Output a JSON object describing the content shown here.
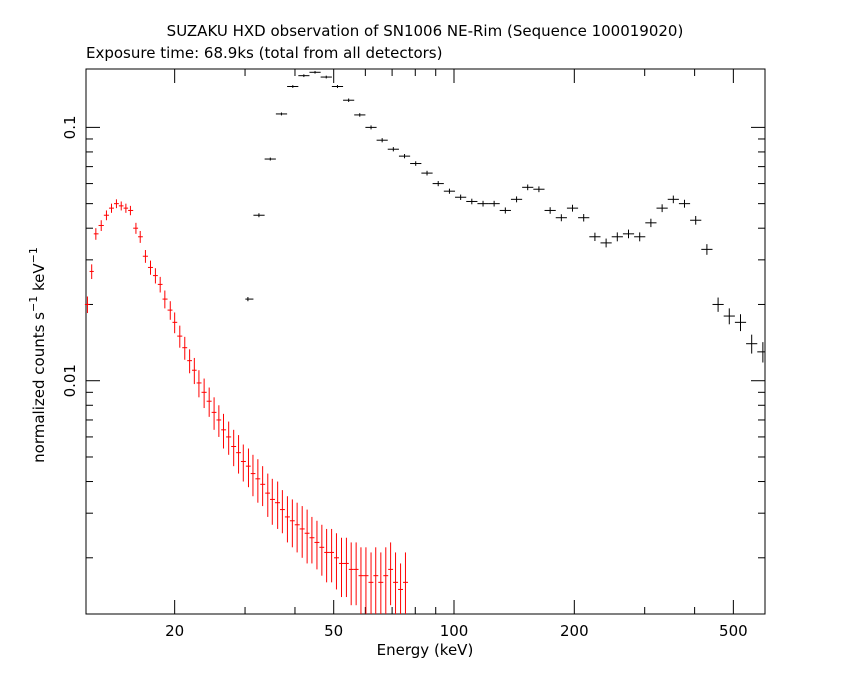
{
  "chart_data": {
    "type": "scatter",
    "title": "SUZAKU HXD observation of SN1006 NE-Rim (Sequence 100019020)",
    "subtitle": "Exposure time: 68.9ks (total from all detectors)",
    "xlabel": "Energy (keV)",
    "ylabel": "normalized counts s^-1 keV^-1",
    "ylabel_parts": {
      "prefix": "normalized counts s",
      "sup1": "−1",
      "mid": " keV",
      "sup2": "−1"
    },
    "x_scale": "log",
    "y_scale": "log",
    "xlim": [
      12,
      600
    ],
    "ylim": [
      0.0012,
      0.17
    ],
    "x_ticks": [
      {
        "value": 20,
        "label": "20"
      },
      {
        "value": 50,
        "label": "50"
      },
      {
        "value": 100,
        "label": "100"
      },
      {
        "value": 200,
        "label": "200"
      },
      {
        "value": 500,
        "label": "500"
      }
    ],
    "y_ticks": [
      {
        "value": 0.01,
        "label": "0.01"
      },
      {
        "value": 0.1,
        "label": "0.1"
      }
    ],
    "grid": false,
    "series": [
      {
        "color": "#ff0000",
        "points": [
          [
            12.1,
            0.02,
            0.0015
          ],
          [
            12.4,
            0.027,
            0.0018
          ],
          [
            12.7,
            0.038,
            0.002
          ],
          [
            13.1,
            0.041,
            0.002
          ],
          [
            13.5,
            0.045,
            0.002
          ],
          [
            13.9,
            0.048,
            0.002
          ],
          [
            14.3,
            0.05,
            0.002
          ],
          [
            14.7,
            0.049,
            0.002
          ],
          [
            15.1,
            0.048,
            0.002
          ],
          [
            15.5,
            0.047,
            0.002
          ],
          [
            16.0,
            0.04,
            0.002
          ],
          [
            16.4,
            0.037,
            0.002
          ],
          [
            16.9,
            0.031,
            0.0018
          ],
          [
            17.4,
            0.028,
            0.0018
          ],
          [
            17.9,
            0.026,
            0.0018
          ],
          [
            18.4,
            0.024,
            0.0017
          ],
          [
            18.9,
            0.021,
            0.0017
          ],
          [
            19.5,
            0.019,
            0.0016
          ],
          [
            20.0,
            0.017,
            0.0016
          ],
          [
            20.6,
            0.015,
            0.0015
          ],
          [
            21.2,
            0.0135,
            0.0014
          ],
          [
            21.8,
            0.012,
            0.0013
          ],
          [
            22.4,
            0.011,
            0.0013
          ],
          [
            23.0,
            0.0098,
            0.0012
          ],
          [
            23.7,
            0.009,
            0.0012
          ],
          [
            24.4,
            0.0083,
            0.0011
          ],
          [
            25.1,
            0.0075,
            0.0011
          ],
          [
            25.8,
            0.007,
            0.001
          ],
          [
            26.5,
            0.0064,
            0.001
          ],
          [
            27.3,
            0.006,
            0.0009
          ],
          [
            28.1,
            0.0055,
            0.0009
          ],
          [
            28.9,
            0.0052,
            0.0009
          ],
          [
            29.7,
            0.0048,
            0.0008
          ],
          [
            30.6,
            0.0046,
            0.0008
          ],
          [
            31.4,
            0.0043,
            0.0008
          ],
          [
            32.3,
            0.0041,
            0.0008
          ],
          [
            33.2,
            0.0039,
            0.0007
          ],
          [
            34.2,
            0.0036,
            0.0007
          ],
          [
            35.1,
            0.0034,
            0.0007
          ],
          [
            36.2,
            0.0033,
            0.0007
          ],
          [
            37.2,
            0.0031,
            0.0006
          ],
          [
            38.3,
            0.0029,
            0.0006
          ],
          [
            39.4,
            0.0028,
            0.0006
          ],
          [
            40.5,
            0.0027,
            0.0006
          ],
          [
            41.7,
            0.0026,
            0.0006
          ],
          [
            42.9,
            0.0025,
            0.0006
          ],
          [
            44.1,
            0.0024,
            0.0005
          ],
          [
            45.4,
            0.0023,
            0.0005
          ],
          [
            46.7,
            0.0022,
            0.0005
          ],
          [
            48.0,
            0.0021,
            0.0005
          ],
          [
            49.4,
            0.0021,
            0.0005
          ],
          [
            50.8,
            0.002,
            0.0005
          ],
          [
            52.3,
            0.0019,
            0.0005
          ],
          [
            53.8,
            0.0019,
            0.0005
          ],
          [
            55.3,
            0.0018,
            0.0005
          ],
          [
            56.9,
            0.0018,
            0.0005
          ],
          [
            58.5,
            0.0017,
            0.0005
          ],
          [
            60.2,
            0.0017,
            0.0005
          ],
          [
            62.0,
            0.0016,
            0.0005
          ],
          [
            63.7,
            0.0017,
            0.0005
          ],
          [
            65.6,
            0.0016,
            0.0005
          ],
          [
            67.5,
            0.0017,
            0.0005
          ],
          [
            69.4,
            0.0018,
            0.0005
          ],
          [
            71.4,
            0.0016,
            0.0005
          ],
          [
            73.5,
            0.0015,
            0.0004
          ],
          [
            75.6,
            0.0016,
            0.0005
          ]
        ]
      },
      {
        "color": "#000000",
        "points": [
          [
            30.5,
            0.021,
            0.0004
          ],
          [
            32.5,
            0.045,
            0.0008
          ],
          [
            34.7,
            0.075,
            0.001
          ],
          [
            37.0,
            0.113,
            0.0015
          ],
          [
            39.5,
            0.145,
            0.0018
          ],
          [
            42.1,
            0.16,
            0.002
          ],
          [
            44.9,
            0.165,
            0.002
          ],
          [
            47.9,
            0.158,
            0.002
          ],
          [
            51.1,
            0.145,
            0.002
          ],
          [
            54.5,
            0.128,
            0.002
          ],
          [
            58.1,
            0.112,
            0.0018
          ],
          [
            62.0,
            0.1,
            0.0018
          ],
          [
            66.1,
            0.089,
            0.0017
          ],
          [
            70.5,
            0.082,
            0.0016
          ],
          [
            75.2,
            0.077,
            0.0015
          ],
          [
            80.2,
            0.072,
            0.0015
          ],
          [
            85.6,
            0.066,
            0.0014
          ],
          [
            91.3,
            0.06,
            0.0014
          ],
          [
            97.4,
            0.056,
            0.0013
          ],
          [
            103.9,
            0.053,
            0.0013
          ],
          [
            110.8,
            0.051,
            0.0013
          ],
          [
            118.2,
            0.05,
            0.0013
          ],
          [
            126.0,
            0.05,
            0.0013
          ],
          [
            134.4,
            0.047,
            0.0013
          ],
          [
            143.4,
            0.052,
            0.0014
          ],
          [
            152.9,
            0.058,
            0.0015
          ],
          [
            163.1,
            0.057,
            0.0015
          ],
          [
            174.0,
            0.047,
            0.0014
          ],
          [
            185.6,
            0.044,
            0.0014
          ],
          [
            197.9,
            0.048,
            0.0015
          ],
          [
            211.1,
            0.044,
            0.0015
          ],
          [
            225.2,
            0.037,
            0.0014
          ],
          [
            240.2,
            0.035,
            0.0014
          ],
          [
            256.2,
            0.037,
            0.0015
          ],
          [
            273.3,
            0.038,
            0.0015
          ],
          [
            291.5,
            0.037,
            0.0015
          ],
          [
            310.9,
            0.042,
            0.0016
          ],
          [
            331.7,
            0.048,
            0.0017
          ],
          [
            353.8,
            0.052,
            0.0018
          ],
          [
            377.3,
            0.05,
            0.0018
          ],
          [
            402.5,
            0.043,
            0.0017
          ],
          [
            429.3,
            0.033,
            0.0016
          ],
          [
            457.9,
            0.02,
            0.0013
          ],
          [
            488.4,
            0.018,
            0.0013
          ],
          [
            521.0,
            0.017,
            0.0013
          ],
          [
            555.7,
            0.014,
            0.0012
          ],
          [
            592.7,
            0.013,
            0.0012
          ]
        ]
      }
    ]
  }
}
